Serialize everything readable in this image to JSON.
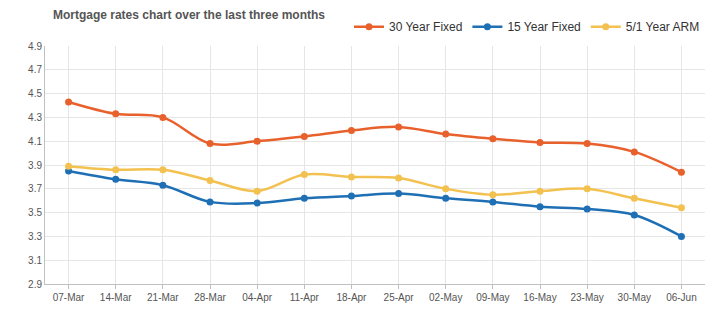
{
  "chart_data": {
    "type": "line",
    "title": "Mortgage rates chart over the last three months",
    "categories": [
      "07-Mar",
      "14-Mar",
      "21-Mar",
      "28-Mar",
      "04-Apr",
      "11-Apr",
      "18-Apr",
      "25-Apr",
      "02-May",
      "09-May",
      "16-May",
      "23-May",
      "30-May",
      "06-Jun"
    ],
    "series": [
      {
        "name": "30 Year Fixed",
        "color": "#e8612c",
        "values": [
          4.43,
          4.33,
          4.3,
          4.08,
          4.1,
          4.14,
          4.19,
          4.22,
          4.16,
          4.12,
          4.09,
          4.08,
          4.01,
          3.84
        ]
      },
      {
        "name": "15 Year Fixed",
        "color": "#1f6fb5",
        "values": [
          3.85,
          3.78,
          3.73,
          3.59,
          3.58,
          3.62,
          3.64,
          3.66,
          3.62,
          3.59,
          3.55,
          3.53,
          3.48,
          3.3
        ]
      },
      {
        "name": "5/1 Year ARM",
        "color": "#f3c14f",
        "values": [
          3.89,
          3.86,
          3.86,
          3.77,
          3.68,
          3.82,
          3.8,
          3.79,
          3.7,
          3.65,
          3.68,
          3.7,
          3.62,
          3.54
        ]
      }
    ],
    "ylim": [
      2.9,
      4.9
    ],
    "yticks": [
      2.9,
      3.1,
      3.3,
      3.5,
      3.7,
      3.9,
      4.1,
      4.3,
      4.5,
      4.7,
      4.9
    ],
    "grid": true,
    "legend": "top-right",
    "marker": "circle",
    "line_style": "smooth"
  }
}
